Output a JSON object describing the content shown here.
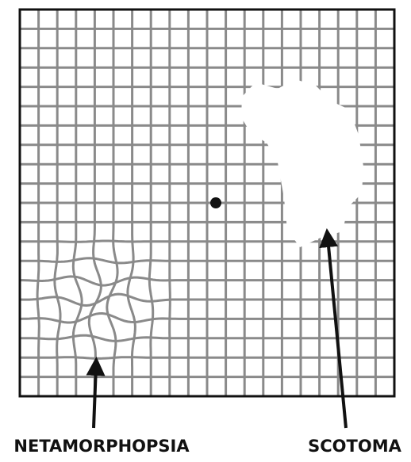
{
  "annotations": {
    "left": "NETAMORPHOPSIA",
    "right": "SCOTOMA"
  }
}
